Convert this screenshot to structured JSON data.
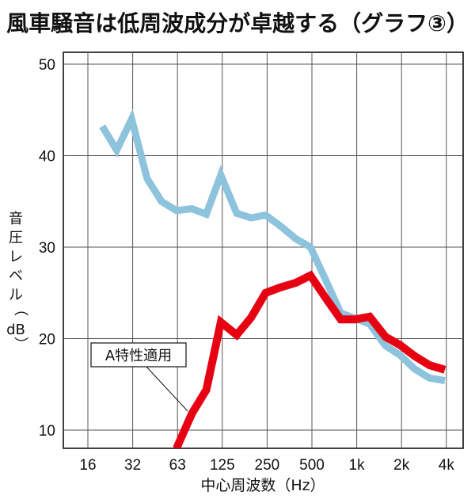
{
  "title": "風車騒音は低周波成分が卓越する（グラフ③）",
  "chart_data": {
    "type": "line",
    "xlabel": "中心周波数（Hz）",
    "ylabel": "音圧レベル（dB）",
    "ylim": [
      8,
      54
    ],
    "yticks": [
      10,
      20,
      30,
      40,
      50
    ],
    "x_tick_labels": [
      "16",
      "32",
      "63",
      "125",
      "250",
      "500",
      "1k",
      "2k",
      "4k"
    ],
    "grid": true,
    "series": [
      {
        "color": "#8dc3dd",
        "x": [
          20,
          25,
          31.5,
          40,
          50,
          63,
          80,
          100,
          125,
          160,
          200,
          250,
          315,
          400,
          500,
          630,
          800,
          1000,
          1250,
          1600,
          2000,
          2500,
          3150,
          4000
        ],
        "values": [
          43.2,
          40.6,
          44.0,
          37.5,
          35.0,
          34.0,
          34.2,
          33.6,
          37.9,
          33.7,
          33.2,
          33.5,
          32.3,
          30.9,
          30.0,
          26.5,
          22.8,
          22.2,
          21.6,
          19.2,
          18.2,
          16.7,
          15.7,
          15.4
        ]
      },
      {
        "name": "A特性適用",
        "color": "#e60012",
        "x": [
          63,
          80,
          100,
          125,
          160,
          200,
          250,
          315,
          400,
          500,
          630,
          800,
          1000,
          1250,
          1600,
          2000,
          2500,
          3150,
          4000
        ],
        "values": [
          8.0,
          11.8,
          14.4,
          21.8,
          20.4,
          22.3,
          25.0,
          25.6,
          26.1,
          26.9,
          24.5,
          22.1,
          22.1,
          22.4,
          20.2,
          19.3,
          18.1,
          17.1,
          16.6
        ]
      }
    ],
    "annotation": "A特性適用"
  }
}
